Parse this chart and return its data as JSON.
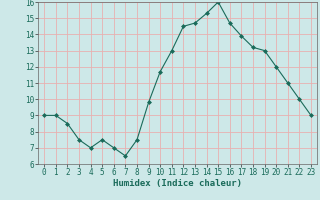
{
  "x": [
    0,
    1,
    2,
    3,
    4,
    5,
    6,
    7,
    8,
    9,
    10,
    11,
    12,
    13,
    14,
    15,
    16,
    17,
    18,
    19,
    20,
    21,
    22,
    23
  ],
  "y": [
    9,
    9,
    8.5,
    7.5,
    7,
    7.5,
    7,
    6.5,
    7.5,
    9.8,
    11.7,
    13,
    14.5,
    14.7,
    15.3,
    16,
    14.7,
    13.9,
    13.2,
    13,
    12,
    11,
    10,
    9
  ],
  "line_color": "#1a6b5a",
  "marker": "D",
  "marker_size": 2,
  "background_color": "#cde8e8",
  "grid_color": "#e8b0b0",
  "xlabel": "Humidex (Indice chaleur)",
  "ylim": [
    6,
    16
  ],
  "xlim": [
    -0.5,
    23.5
  ],
  "yticks": [
    6,
    7,
    8,
    9,
    10,
    11,
    12,
    13,
    14,
    15,
    16
  ],
  "xticks": [
    0,
    1,
    2,
    3,
    4,
    5,
    6,
    7,
    8,
    9,
    10,
    11,
    12,
    13,
    14,
    15,
    16,
    17,
    18,
    19,
    20,
    21,
    22,
    23
  ],
  "xlabel_fontsize": 6.5,
  "tick_fontsize": 5.5
}
